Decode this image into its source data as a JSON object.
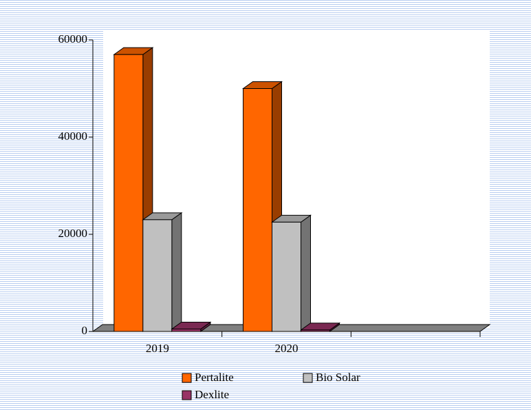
{
  "chart_data": {
    "type": "bar3d",
    "categories": [
      "2019",
      "2020",
      null
    ],
    "series": [
      {
        "name": "Pertalite",
        "color": "#ff6600",
        "values": [
          57000,
          50000,
          null
        ]
      },
      {
        "name": "Bio Solar",
        "color": "#c0c0c0",
        "values": [
          23000,
          22500,
          null
        ]
      },
      {
        "name": "Dexlite",
        "color": "#993366",
        "values": [
          500,
          300,
          null
        ]
      }
    ],
    "ylim": [
      0,
      60000
    ],
    "yticks": [
      0,
      20000,
      40000,
      60000
    ]
  }
}
